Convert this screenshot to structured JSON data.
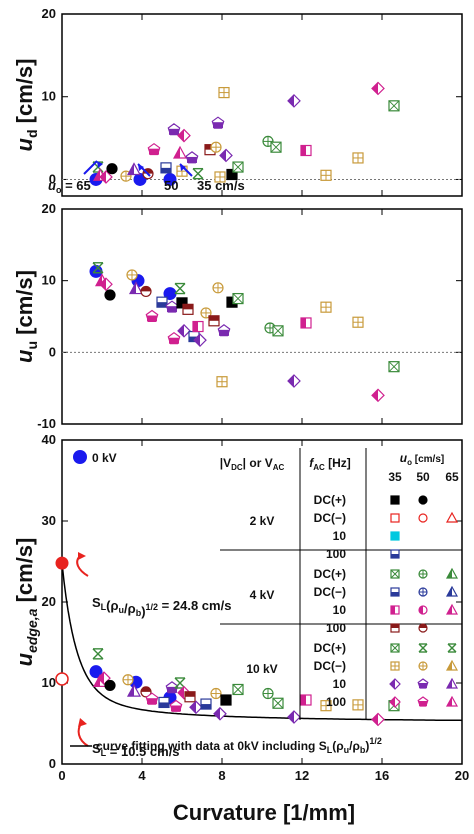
{
  "chart_data": [
    {
      "type": "scatter",
      "ylabel": "u_d [cm/s]",
      "xlim": [
        0,
        20
      ],
      "ylim": [
        -2,
        20
      ],
      "yticks": [
        0,
        10,
        20
      ],
      "annotations": [
        "u_o = 65",
        "50",
        "35 cm/s"
      ],
      "points": [
        {
          "x": 1.7,
          "y": 0.0,
          "s": "blue"
        },
        {
          "x": 3.9,
          "y": 0.0,
          "s": "blue"
        },
        {
          "x": 5.4,
          "y": 0.0,
          "s": "blue"
        },
        {
          "x": 1.8,
          "y": 1.5,
          "s": "g_x"
        },
        {
          "x": 1.9,
          "y": 0.5,
          "s": "m_tri"
        },
        {
          "x": 2.2,
          "y": 0.3,
          "s": "m_dia"
        },
        {
          "x": 2.5,
          "y": 1.3,
          "s": "k_cir"
        },
        {
          "x": 3.2,
          "y": 0.4,
          "s": "o_cir"
        },
        {
          "x": 3.6,
          "y": 1.2,
          "s": "v_tri"
        },
        {
          "x": 4.3,
          "y": 0.7,
          "s": "r_cir"
        },
        {
          "x": 4.6,
          "y": 3.6,
          "s": "m_pen"
        },
        {
          "x": 5.2,
          "y": 1.4,
          "s": "b_sq"
        },
        {
          "x": 5.6,
          "y": 6.0,
          "s": "v_pen"
        },
        {
          "x": 5.9,
          "y": 3.2,
          "s": "m_tri"
        },
        {
          "x": 6.0,
          "y": 1.0,
          "s": "o_sq"
        },
        {
          "x": 6.1,
          "y": 5.3,
          "s": "m_dia"
        },
        {
          "x": 6.5,
          "y": 2.6,
          "s": "v_pen"
        },
        {
          "x": 6.8,
          "y": 0.7,
          "s": "g_x"
        },
        {
          "x": 7.4,
          "y": 3.6,
          "s": "r_sq"
        },
        {
          "x": 7.7,
          "y": 3.9,
          "s": "o_cir"
        },
        {
          "x": 7.8,
          "y": 6.8,
          "s": "v_pen"
        },
        {
          "x": 7.9,
          "y": 0.3,
          "s": "o_sq"
        },
        {
          "x": 8.1,
          "y": 10.5,
          "s": "o_sq"
        },
        {
          "x": 8.2,
          "y": 2.9,
          "s": "v_dia"
        },
        {
          "x": 8.5,
          "y": 0.6,
          "s": "k_sq"
        },
        {
          "x": 8.8,
          "y": 1.5,
          "s": "g_sq"
        },
        {
          "x": 10.3,
          "y": 4.6,
          "s": "g_cir"
        },
        {
          "x": 10.7,
          "y": 3.9,
          "s": "g_sq"
        },
        {
          "x": 11.6,
          "y": 9.5,
          "s": "v_dia"
        },
        {
          "x": 12.2,
          "y": 3.5,
          "s": "m_half"
        },
        {
          "x": 13.2,
          "y": 0.5,
          "s": "o_sq"
        },
        {
          "x": 14.8,
          "y": 2.6,
          "s": "o_sq"
        },
        {
          "x": 15.8,
          "y": 11.0,
          "s": "m_dia"
        },
        {
          "x": 16.6,
          "y": 8.9,
          "s": "g_sq"
        }
      ]
    },
    {
      "type": "scatter",
      "ylabel": "u_u [cm/s]",
      "xlim": [
        0,
        20
      ],
      "ylim": [
        -10,
        20
      ],
      "yticks": [
        -10,
        0,
        10,
        20
      ],
      "points": [
        {
          "x": 1.7,
          "y": 11.3,
          "s": "blue"
        },
        {
          "x": 3.8,
          "y": 10.0,
          "s": "blue"
        },
        {
          "x": 5.4,
          "y": 8.2,
          "s": "blue"
        },
        {
          "x": 1.8,
          "y": 11.8,
          "s": "g_x"
        },
        {
          "x": 2.0,
          "y": 10.0,
          "s": "m_tri"
        },
        {
          "x": 2.2,
          "y": 9.5,
          "s": "m_dia"
        },
        {
          "x": 2.4,
          "y": 8.0,
          "s": "k_cir"
        },
        {
          "x": 3.5,
          "y": 10.8,
          "s": "o_cir"
        },
        {
          "x": 3.7,
          "y": 8.9,
          "s": "v_tri"
        },
        {
          "x": 4.2,
          "y": 8.5,
          "s": "r_cir"
        },
        {
          "x": 4.5,
          "y": 5.0,
          "s": "m_pen"
        },
        {
          "x": 5.0,
          "y": 7.0,
          "s": "b_sq"
        },
        {
          "x": 5.5,
          "y": 6.3,
          "s": "v_pen"
        },
        {
          "x": 5.6,
          "y": 1.9,
          "s": "m_pen"
        },
        {
          "x": 5.9,
          "y": 8.9,
          "s": "g_x"
        },
        {
          "x": 6.0,
          "y": 6.9,
          "s": "k_sq"
        },
        {
          "x": 6.1,
          "y": 3.0,
          "s": "v_dia"
        },
        {
          "x": 6.3,
          "y": 6.0,
          "s": "r_sq"
        },
        {
          "x": 6.6,
          "y": 2.2,
          "s": "b_sq"
        },
        {
          "x": 6.8,
          "y": 3.6,
          "s": "m_half"
        },
        {
          "x": 6.9,
          "y": 1.7,
          "s": "v_dia"
        },
        {
          "x": 7.2,
          "y": 5.5,
          "s": "o_cir"
        },
        {
          "x": 7.6,
          "y": 4.4,
          "s": "r_sq"
        },
        {
          "x": 7.8,
          "y": 9.0,
          "s": "o_cir"
        },
        {
          "x": 8.0,
          "y": -4.1,
          "s": "o_sq"
        },
        {
          "x": 8.1,
          "y": 3.0,
          "s": "v_pen"
        },
        {
          "x": 8.5,
          "y": 7.0,
          "s": "k_sq"
        },
        {
          "x": 8.8,
          "y": 7.5,
          "s": "g_sq"
        },
        {
          "x": 10.4,
          "y": 3.4,
          "s": "g_cir"
        },
        {
          "x": 10.8,
          "y": 3.0,
          "s": "g_sq"
        },
        {
          "x": 11.6,
          "y": -4.0,
          "s": "v_dia"
        },
        {
          "x": 12.2,
          "y": 4.1,
          "s": "m_half"
        },
        {
          "x": 13.2,
          "y": 6.3,
          "s": "o_sq"
        },
        {
          "x": 14.8,
          "y": 4.2,
          "s": "o_sq"
        },
        {
          "x": 15.8,
          "y": -6.0,
          "s": "m_dia"
        },
        {
          "x": 16.6,
          "y": -2.0,
          "s": "g_sq"
        }
      ]
    },
    {
      "type": "scatter",
      "ylabel": "u_edge,a [cm/s]",
      "xlabel": "Curvature [1/mm]",
      "xlim": [
        0,
        20
      ],
      "ylim": [
        0,
        40
      ],
      "xticks": [
        0,
        4,
        8,
        12,
        16,
        20
      ],
      "yticks": [
        0,
        10,
        20,
        30,
        40
      ],
      "special_points": [
        {
          "x": 0,
          "y": 24.8,
          "label": "S_L(ρu/ρb)^1/2 = 24.8 cm/s",
          "s": "red_fill"
        },
        {
          "x": 0,
          "y": 10.5,
          "label": "S_L = 10.5 cm/s",
          "s": "red_open"
        }
      ],
      "fit_curve": "curve fitting with data at 0kV including S_L(ρu/ρb)^1/2",
      "points": [
        {
          "x": 1.7,
          "y": 11.4,
          "s": "blue"
        },
        {
          "x": 3.7,
          "y": 10.1,
          "s": "blue"
        },
        {
          "x": 5.4,
          "y": 8.2,
          "s": "blue"
        },
        {
          "x": 1.8,
          "y": 13.6,
          "s": "g_x"
        },
        {
          "x": 1.9,
          "y": 10.2,
          "s": "m_tri"
        },
        {
          "x": 2.1,
          "y": 10.6,
          "s": "m_dia"
        },
        {
          "x": 2.4,
          "y": 9.7,
          "s": "k_cir"
        },
        {
          "x": 3.3,
          "y": 10.4,
          "s": "o_cir"
        },
        {
          "x": 3.6,
          "y": 9.0,
          "s": "v_tri"
        },
        {
          "x": 4.2,
          "y": 8.9,
          "s": "r_cir"
        },
        {
          "x": 4.5,
          "y": 8.0,
          "s": "m_pen"
        },
        {
          "x": 5.1,
          "y": 7.6,
          "s": "b_sq"
        },
        {
          "x": 5.5,
          "y": 9.4,
          "s": "v_pen"
        },
        {
          "x": 5.7,
          "y": 7.1,
          "s": "m_pen"
        },
        {
          "x": 5.9,
          "y": 10.0,
          "s": "g_x"
        },
        {
          "x": 6.1,
          "y": 8.8,
          "s": "m_dia"
        },
        {
          "x": 6.4,
          "y": 8.3,
          "s": "r_sq"
        },
        {
          "x": 6.7,
          "y": 7.0,
          "s": "v_dia"
        },
        {
          "x": 7.2,
          "y": 7.4,
          "s": "b_sq"
        },
        {
          "x": 7.7,
          "y": 8.7,
          "s": "o_cir"
        },
        {
          "x": 7.9,
          "y": 6.2,
          "s": "v_dia"
        },
        {
          "x": 8.2,
          "y": 7.9,
          "s": "k_sq"
        },
        {
          "x": 8.8,
          "y": 9.2,
          "s": "g_sq"
        },
        {
          "x": 10.3,
          "y": 8.7,
          "s": "g_cir"
        },
        {
          "x": 10.8,
          "y": 7.5,
          "s": "g_sq"
        },
        {
          "x": 11.6,
          "y": 5.8,
          "s": "v_dia"
        },
        {
          "x": 12.2,
          "y": 7.9,
          "s": "m_half"
        },
        {
          "x": 13.2,
          "y": 7.2,
          "s": "o_sq"
        },
        {
          "x": 14.8,
          "y": 7.3,
          "s": "o_sq"
        },
        {
          "x": 15.8,
          "y": 5.5,
          "s": "m_dia"
        },
        {
          "x": 16.6,
          "y": 7.2,
          "s": "g_sq"
        }
      ],
      "legend": {
        "zero_kv": "0 kV",
        "hdr_voltage": "|V_DC| or V_AC",
        "hdr_freq": "f_AC [Hz]",
        "hdr_uo": "u_o [cm/s]",
        "uo_values": [
          "35",
          "50",
          "65"
        ],
        "groups": [
          {
            "voltage": "2 kV",
            "rows": [
              {
                "freq": "DC(+)",
                "syms": [
                  "k_sq",
                  "k_cir",
                  ""
                ]
              },
              {
                "freq": "DC(−)",
                "syms": [
                  "r_sq_open",
                  "r_cir_open",
                  "r_tri_open"
                ]
              },
              {
                "freq": "10",
                "syms": [
                  "c_sq",
                  "",
                  ""
                ]
              },
              {
                "freq": "100",
                "syms": [
                  "b_sq",
                  "",
                  ""
                ]
              }
            ]
          },
          {
            "voltage": "4 kV",
            "rows": [
              {
                "freq": "DC(+)",
                "syms": [
                  "g_sq",
                  "g_cir",
                  "g_tri"
                ]
              },
              {
                "freq": "DC(−)",
                "syms": [
                  "b_sq",
                  "b_cir",
                  "b_tri"
                ]
              },
              {
                "freq": "10",
                "syms": [
                  "m_half",
                  "m_cir",
                  "m_tri"
                ]
              },
              {
                "freq": "100",
                "syms": [
                  "r_sq",
                  "r_cir",
                  ""
                ]
              }
            ]
          },
          {
            "voltage": "10 kV",
            "rows": [
              {
                "freq": "DC(+)",
                "syms": [
                  "g_sq",
                  "g_x",
                  "g_x"
                ]
              },
              {
                "freq": "DC(−)",
                "syms": [
                  "o_sq",
                  "o_cir",
                  "o_tri"
                ]
              },
              {
                "freq": "10",
                "syms": [
                  "v_dia",
                  "v_pen",
                  "v_tri"
                ]
              },
              {
                "freq": "100",
                "syms": [
                  "m_dia",
                  "m_pen",
                  "m_tri"
                ]
              }
            ]
          }
        ]
      }
    }
  ],
  "colors": {
    "blue": "#1a1aee",
    "red": "#e8231f",
    "green": "#3a8a3a",
    "olive": "#c89a3a",
    "magenta": "#d0208f",
    "violet": "#7a2ab0",
    "dark_red": "#8a1a1a",
    "navy": "#2a3a9a",
    "cyan": "#00c8e0"
  }
}
